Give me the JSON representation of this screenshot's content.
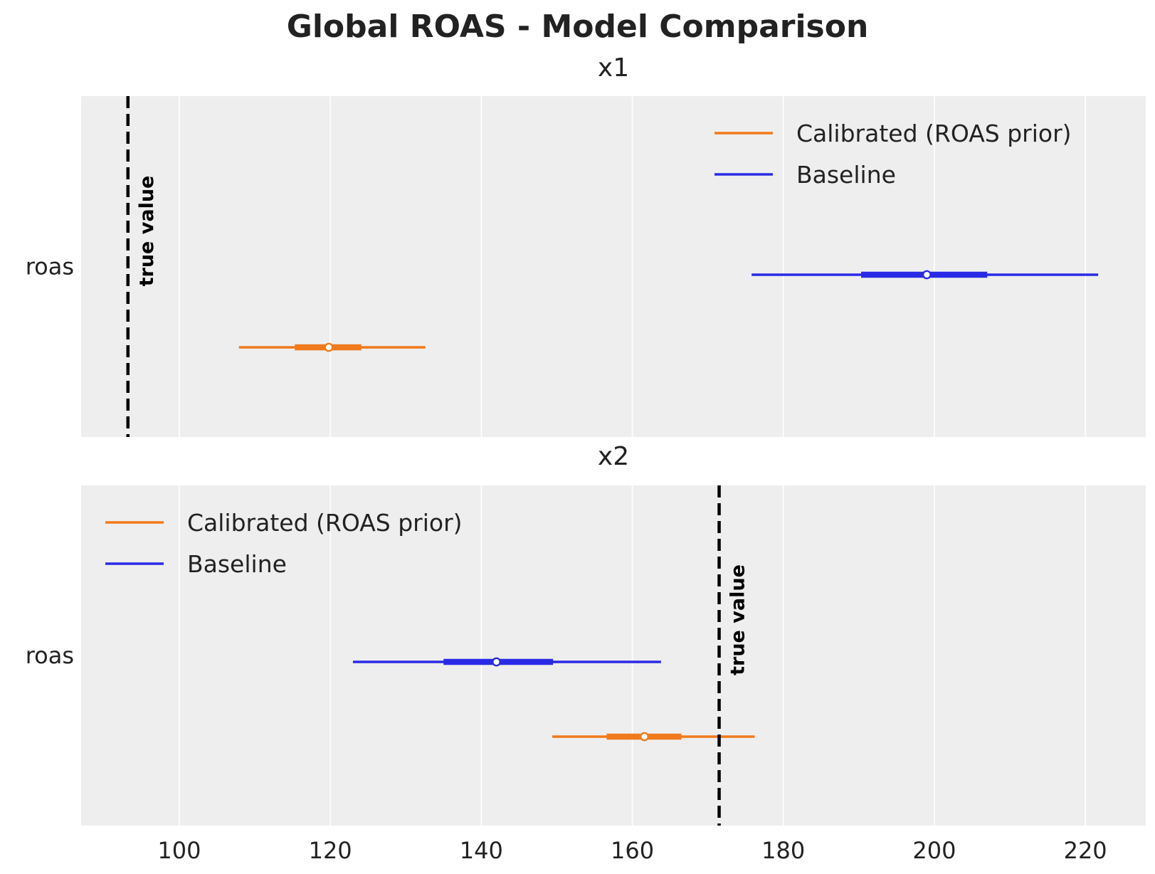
{
  "figure": {
    "title": "Global ROAS - Model Comparison"
  },
  "colors": {
    "calibrated": "#f07a1c",
    "baseline": "#2a2ae6",
    "truth": "#000000",
    "panel_bg": "#eeeeee",
    "grid": "#ffffff",
    "text": "#222222"
  },
  "chart_data": [
    {
      "type": "forest",
      "title": "x1",
      "ylabel_tick": "roas",
      "xlim": [
        87,
        228
      ],
      "xticks": [
        100,
        120,
        140,
        160,
        180,
        200,
        220
      ],
      "true_value": 93.2,
      "true_value_label": "true value",
      "legend_loc": "upper right",
      "series": [
        {
          "name": "Calibrated (ROAS prior)",
          "color_key": "calibrated",
          "median": 119.8,
          "hdi_50": [
            115.3,
            124.1
          ],
          "hdi_94": [
            107.9,
            132.6
          ]
        },
        {
          "name": "Baseline",
          "color_key": "baseline",
          "median": 199.0,
          "hdi_50": [
            190.3,
            207.0
          ],
          "hdi_94": [
            175.8,
            221.7
          ]
        }
      ]
    },
    {
      "type": "forest",
      "title": "x2",
      "ylabel_tick": "roas",
      "xlim": [
        87,
        228
      ],
      "xticks": [
        100,
        120,
        140,
        160,
        180,
        200,
        220
      ],
      "true_value": 171.5,
      "true_value_label": "true value",
      "legend_loc": "upper left",
      "series": [
        {
          "name": "Calibrated (ROAS prior)",
          "color_key": "calibrated",
          "median": 161.6,
          "hdi_50": [
            156.6,
            166.5
          ],
          "hdi_94": [
            149.4,
            176.2
          ]
        },
        {
          "name": "Baseline",
          "color_key": "baseline",
          "median": 142.0,
          "hdi_50": [
            135.0,
            149.5
          ],
          "hdi_94": [
            123.0,
            163.8
          ]
        }
      ]
    }
  ]
}
